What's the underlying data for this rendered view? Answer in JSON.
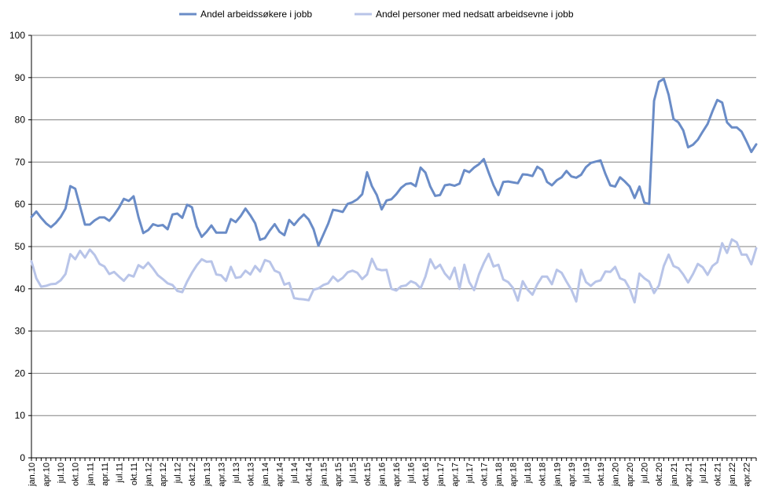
{
  "chart_data": {
    "type": "line",
    "ylim": [
      0,
      100
    ],
    "yticks": [
      0,
      10,
      20,
      30,
      40,
      50,
      60,
      70,
      80,
      90,
      100
    ],
    "grid": true,
    "legend_position": "top",
    "xtick_labels": [
      "jan.10",
      "apr.10",
      "jul.10",
      "okt.10",
      "jan.11",
      "apr.11",
      "jul.11",
      "okt.11",
      "jan.12",
      "apr.12",
      "jul.12",
      "okt.12",
      "jan.13",
      "apr.13",
      "jul.13",
      "okt.13",
      "jan.14",
      "apr.14",
      "jul.14",
      "okt.14",
      "jan.15",
      "apr.15",
      "jul.15",
      "okt.15",
      "jan.16",
      "apr.16",
      "jul.16",
      "okt.16",
      "jan.17",
      "apr.17",
      "jul.17",
      "okt.17",
      "jan.18",
      "apr.18",
      "jul.18",
      "okt.18",
      "jan.19",
      "apr.19",
      "jul.19",
      "okt.19",
      "jan.20",
      "apr.20",
      "jul.20",
      "okt.20",
      "jan.21",
      "apr.21",
      "jul.21",
      "okt.21",
      "jan.22",
      "apr.22"
    ],
    "series": [
      {
        "name": "Andel arbeidssøkere i jobb",
        "color": "#6a8cc7",
        "values": [
          57,
          58.3,
          56.8,
          55.5,
          54.6,
          55.6,
          57,
          59,
          64.3,
          63.7,
          59.5,
          55.2,
          55.2,
          56.2,
          56.9,
          56.9,
          56.1,
          57.5,
          59.2,
          61.3,
          60.8,
          61.9,
          57,
          53.2,
          53.9,
          55.3,
          54.9,
          55.1,
          54.1,
          57.6,
          57.8,
          56.8,
          59.9,
          59.3,
          54.7,
          52.3,
          53.5,
          55,
          53.3,
          53.3,
          53.3,
          56.5,
          55.8,
          57.2,
          59,
          57.4,
          55.5,
          51.6,
          52,
          53.8,
          55.3,
          53.5,
          52.7,
          56.3,
          55.1,
          56.5,
          57.6,
          56.4,
          54.1,
          50.2,
          52.8,
          55.4,
          58.7,
          58.5,
          58.2,
          60.1,
          60.5,
          61.2,
          62.4,
          67.6,
          64.3,
          62.2,
          58.8,
          60.9,
          61.2,
          62.4,
          63.9,
          64.8,
          65,
          64.3,
          68.7,
          67.5,
          64.2,
          62,
          62.2,
          64.5,
          64.7,
          64.4,
          64.9,
          68.1,
          67.6,
          68.7,
          69.5,
          70.7,
          67.5,
          64.5,
          62.2,
          65.3,
          65.4,
          65.2,
          65,
          67.1,
          67,
          66.7,
          68.9,
          68.1,
          65.3,
          64.5,
          65.7,
          66.4,
          67.9,
          66.6,
          66.3,
          67,
          68.8,
          69.8,
          70.1,
          70.4,
          67.2,
          64.5,
          64.2,
          66.4,
          65.4,
          64.2,
          61.5,
          64.2,
          60.4,
          60.1,
          84.5,
          89,
          89.7,
          85.9,
          80.2,
          79.4,
          77.5,
          73.5,
          74.1,
          75.3,
          77.2,
          79,
          82,
          84.7,
          84.1,
          79.4,
          78.2,
          78.2,
          77.2,
          74.9,
          72.4,
          74.2
        ]
      },
      {
        "name": "Andel personer med nedsatt arbeidsevne i jobb",
        "color": "#b8c4e8",
        "values": [
          46.5,
          42.5,
          40.5,
          40.7,
          41.1,
          41.2,
          42,
          43.5,
          48.2,
          47,
          49,
          47.4,
          49.3,
          48,
          45.9,
          45.3,
          43.5,
          44,
          42.9,
          41.9,
          43.3,
          42.9,
          45.6,
          44.9,
          46.2,
          44.8,
          43.2,
          42.3,
          41.3,
          40.9,
          39.5,
          39.2,
          41.7,
          43.8,
          45.6,
          47,
          46.4,
          46.5,
          43.4,
          43.2,
          41.9,
          45.2,
          42.6,
          42.8,
          44.3,
          43.4,
          45.4,
          44.1,
          46.8,
          46.4,
          44.3,
          43.8,
          41,
          41.4,
          37.8,
          37.6,
          37.5,
          37.3,
          39.8,
          40.1,
          40.9,
          41.3,
          42.9,
          41.8,
          42.6,
          43.9,
          44.3,
          43.8,
          42.3,
          43.4,
          47.1,
          44.7,
          44.4,
          44.5,
          40,
          39.6,
          40.6,
          40.8,
          41.8,
          41.3,
          40.1,
          42.9,
          47,
          44.8,
          45.7,
          43.6,
          42.3,
          45,
          40,
          45.7,
          41.6,
          39.7,
          43.4,
          46.1,
          48.3,
          45.3,
          45.7,
          42.2,
          41.6,
          40.2,
          37.2,
          41.8,
          39.8,
          38.6,
          41.1,
          42.9,
          42.9,
          41.1,
          44.5,
          43.8,
          41.7,
          39.8,
          37,
          44.5,
          41.6,
          40.7,
          41.7,
          42,
          44.1,
          44,
          45.2,
          42.5,
          42,
          40,
          36.8,
          43.6,
          42.5,
          41.7,
          39,
          40.8,
          45.4,
          48.1,
          45.4,
          44.9,
          43.4,
          41.5,
          43.5,
          45.9,
          45.1,
          43.3,
          45.4,
          46.3,
          50.8,
          48.5,
          51.7,
          51,
          48.1,
          48.1,
          45.8,
          49.6
        ]
      }
    ]
  }
}
